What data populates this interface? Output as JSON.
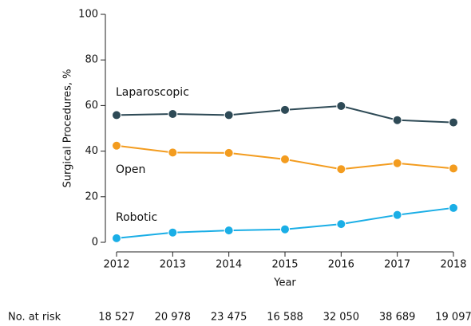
{
  "chart_data": {
    "type": "line",
    "y_label": "Surgical Procedures, %",
    "x_label": "Year",
    "x": [
      2012,
      2013,
      2014,
      2015,
      2016,
      2017,
      2018
    ],
    "xlim": [
      2012,
      2018
    ],
    "xticks": [
      2012,
      2013,
      2014,
      2015,
      2016,
      2017,
      2018
    ],
    "ylim": [
      0,
      100
    ],
    "yticks": [
      0,
      20,
      40,
      60,
      80,
      100
    ],
    "grid": false,
    "series": [
      {
        "name": "Laparoscopic",
        "color": "#2e4a56",
        "values": [
          55.8,
          56.3,
          55.8,
          58.1,
          59.8,
          53.6,
          52.6
        ]
      },
      {
        "name": "Open",
        "color": "#f39c1f",
        "values": [
          42.4,
          39.4,
          39.2,
          36.4,
          32.1,
          34.7,
          32.4
        ]
      },
      {
        "name": "Robotic",
        "color": "#1aaee6",
        "values": [
          1.8,
          4.3,
          5.2,
          5.7,
          8.0,
          12.0,
          15.1
        ]
      }
    ],
    "at_risk": {
      "label": "No. at risk",
      "values": [
        "18 527",
        "20 978",
        "23 475",
        "16 588",
        "32 050",
        "38 689",
        "19 097"
      ]
    }
  }
}
